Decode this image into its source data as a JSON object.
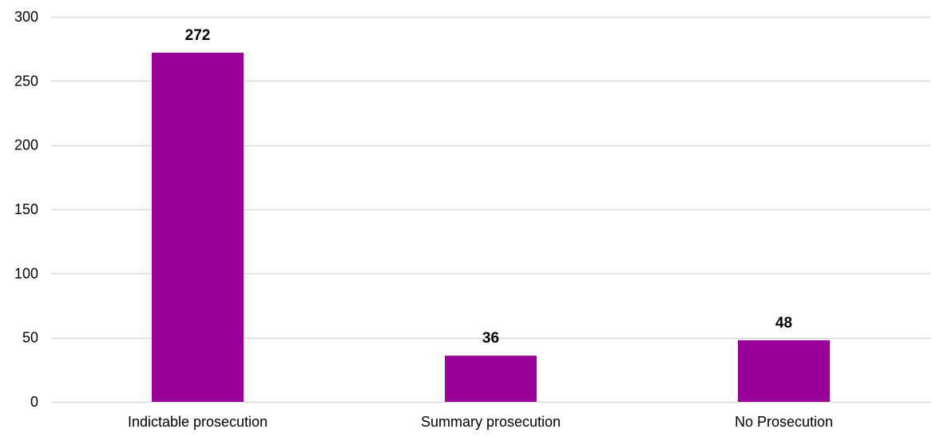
{
  "chart_data": {
    "type": "bar",
    "categories": [
      "Indictable prosecution",
      "Summary prosecution",
      "No Prosecution"
    ],
    "values": [
      272,
      36,
      48
    ],
    "data_labels": [
      "272",
      "36",
      "48"
    ],
    "title": "",
    "xlabel": "",
    "ylabel": "",
    "ylim": [
      0,
      300
    ],
    "yticks": [
      0,
      50,
      100,
      150,
      200,
      250,
      300
    ],
    "ytick_labels": [
      "0",
      "50",
      "100",
      "150",
      "200",
      "250",
      "300"
    ],
    "grid": true,
    "legend": "none",
    "colors": {
      "bar": "#990099",
      "grid": "#d9d9d9",
      "axis": "#d9d9d9",
      "text": "#000000"
    }
  }
}
